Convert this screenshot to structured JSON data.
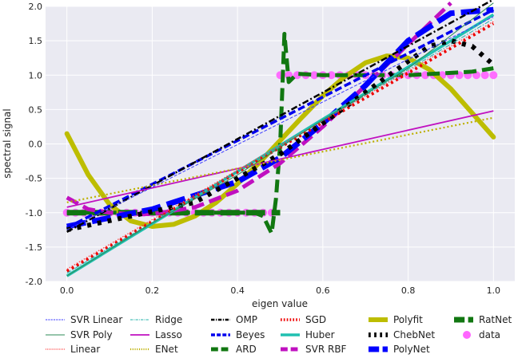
{
  "chart_data": {
    "type": "line",
    "title": "",
    "xlabel": "eigen value",
    "ylabel": "spectral signal",
    "xlim": [
      -0.05,
      1.05
    ],
    "ylim": [
      -2.0,
      2.0
    ],
    "xticks": [
      "0.0",
      "0.2",
      "0.4",
      "0.6",
      "0.8",
      "1.0"
    ],
    "yticks": [
      "-2.0",
      "-1.5",
      "-1.0",
      "-0.5",
      "0.0",
      "0.5",
      "1.0",
      "1.5",
      "2.0"
    ],
    "grid": true,
    "background": "#eaeaf2",
    "legend_position": "bottom",
    "series": [
      {
        "name": "SVR Linear",
        "color": "#3b3bff",
        "style": "dashed-thin",
        "x": [
          0.0,
          1.0
        ],
        "y": [
          -1.25,
          1.85
        ]
      },
      {
        "name": "SVR Poly",
        "color": "#2e8b57",
        "style": "solid-thin",
        "x": [
          0.0,
          0.2,
          0.4,
          0.5,
          0.6,
          0.8,
          1.0
        ],
        "y": [
          -1.92,
          -1.15,
          -0.45,
          -0.05,
          0.35,
          1.1,
          2.05
        ]
      },
      {
        "name": "Linear",
        "color": "#ff4040",
        "style": "dotted-thin",
        "x": [
          0.0,
          1.0
        ],
        "y": [
          -1.82,
          1.78
        ]
      },
      {
        "name": "Ridge",
        "color": "#20b2aa",
        "style": "dashdot-thin",
        "x": [
          0.0,
          1.0
        ],
        "y": [
          -1.88,
          1.82
        ]
      },
      {
        "name": "Lasso",
        "color": "#c010c0",
        "style": "solid-med",
        "x": [
          0.0,
          1.0
        ],
        "y": [
          -0.92,
          0.48
        ]
      },
      {
        "name": "ENet",
        "color": "#bdb000",
        "style": "dotted-med",
        "x": [
          0.0,
          1.0
        ],
        "y": [
          -0.85,
          0.38
        ]
      },
      {
        "name": "OMP",
        "color": "#000000",
        "style": "dashdot-med",
        "x": [
          0.0,
          1.0
        ],
        "y": [
          -1.28,
          2.1
        ]
      },
      {
        "name": "Beyes",
        "color": "#0000ee",
        "style": "dashed-med",
        "x": [
          0.0,
          1.0
        ],
        "y": [
          -1.22,
          1.95
        ]
      },
      {
        "name": "ARD",
        "color": "#117711",
        "style": "dashed-thick",
        "x": [
          0.0,
          0.25,
          0.44,
          0.46,
          0.48,
          0.49,
          0.5,
          0.505,
          0.51,
          0.52,
          0.54,
          0.6,
          0.8,
          0.95,
          1.0
        ],
        "y": [
          -1.0,
          -1.0,
          -1.0,
          -1.05,
          -1.3,
          -0.8,
          0.0,
          0.8,
          1.6,
          0.9,
          1.02,
          1.0,
          1.0,
          1.05,
          1.1
        ]
      },
      {
        "name": "SGD",
        "color": "#ee0000",
        "style": "dotted-thick",
        "x": [
          0.0,
          1.0
        ],
        "y": [
          -1.85,
          1.75
        ]
      },
      {
        "name": "Huber",
        "color": "#20c0b0",
        "style": "solid-thick",
        "x": [
          0.0,
          1.0
        ],
        "y": [
          -1.92,
          1.88
        ]
      },
      {
        "name": "SVR RBF",
        "color": "#c010c0",
        "style": "dashed-thick",
        "x": [
          0.0,
          0.05,
          0.1,
          0.15,
          0.2,
          0.3,
          0.4,
          0.5,
          0.6,
          0.7,
          0.8,
          0.9
        ],
        "y": [
          -0.78,
          -0.95,
          -1.0,
          -1.02,
          -1.02,
          -0.92,
          -0.68,
          -0.28,
          0.25,
          0.85,
          1.45,
          2.05
        ]
      },
      {
        "name": "Polyfit",
        "color": "#bdbd00",
        "style": "solid-xthick",
        "x": [
          0.0,
          0.05,
          0.1,
          0.15,
          0.2,
          0.25,
          0.3,
          0.35,
          0.4,
          0.45,
          0.5,
          0.55,
          0.6,
          0.65,
          0.7,
          0.75,
          0.8,
          0.85,
          0.9,
          0.95,
          1.0
        ],
        "y": [
          0.15,
          -0.45,
          -0.88,
          -1.12,
          -1.2,
          -1.17,
          -1.05,
          -0.85,
          -0.58,
          -0.28,
          0.05,
          0.38,
          0.7,
          0.97,
          1.18,
          1.28,
          1.25,
          1.08,
          0.8,
          0.45,
          0.1
        ]
      },
      {
        "name": "ChebNet",
        "color": "#000000",
        "style": "dotted-xthick",
        "x": [
          0.0,
          0.3,
          0.5,
          0.6,
          0.7,
          0.8,
          0.85,
          0.9,
          0.95,
          1.0
        ],
        "y": [
          -1.25,
          -0.85,
          -0.15,
          0.3,
          0.75,
          1.2,
          1.42,
          1.5,
          1.42,
          1.15
        ]
      },
      {
        "name": "PolyNet",
        "color": "#0000ff",
        "style": "dashed-xthick",
        "x": [
          0.0,
          0.2,
          0.4,
          0.5,
          0.6,
          0.7,
          0.8,
          0.9,
          1.0
        ],
        "y": [
          -1.2,
          -0.95,
          -0.55,
          -0.2,
          0.3,
          0.85,
          1.5,
          1.9,
          1.95
        ]
      },
      {
        "name": "RatNet",
        "color": "#117711",
        "style": "dashed-xthick",
        "x": [
          0.0,
          0.2,
          0.3,
          0.4,
          0.5
        ],
        "y": [
          -1.0,
          -1.0,
          -1.0,
          -1.0,
          -1.0
        ]
      },
      {
        "name": "data",
        "color": "#ff66ff",
        "style": "dots",
        "x": [
          0.0,
          0.02,
          0.04,
          0.06,
          0.08,
          0.1,
          0.12,
          0.14,
          0.16,
          0.18,
          0.2,
          0.22,
          0.24,
          0.26,
          0.28,
          0.3,
          0.32,
          0.34,
          0.36,
          0.38,
          0.4,
          0.42,
          0.44,
          0.46,
          0.48,
          0.5,
          0.52,
          0.54,
          0.56,
          0.58,
          0.6,
          0.62,
          0.64,
          0.66,
          0.68,
          0.7,
          0.72,
          0.74,
          0.76,
          0.78,
          0.8,
          0.82,
          0.84,
          0.86,
          0.88,
          0.9,
          0.92,
          0.94,
          0.96,
          0.98,
          1.0
        ],
        "y": [
          -1.0,
          -1.0,
          -1.0,
          -1.0,
          -1.0,
          -1.0,
          -1.0,
          -1.0,
          -1.0,
          -1.0,
          -1.0,
          -1.0,
          -1.0,
          -1.0,
          -1.0,
          -1.0,
          -1.0,
          -1.0,
          -1.0,
          -1.0,
          -1.0,
          -1.0,
          -1.0,
          -1.0,
          -1.0,
          1.0,
          1.0,
          1.0,
          1.0,
          1.0,
          1.0,
          1.0,
          1.0,
          1.0,
          1.0,
          1.0,
          1.0,
          1.0,
          1.0,
          1.0,
          1.0,
          1.0,
          1.0,
          1.0,
          1.0,
          1.0,
          1.0,
          1.0,
          1.0,
          1.0,
          1.0
        ]
      }
    ]
  }
}
